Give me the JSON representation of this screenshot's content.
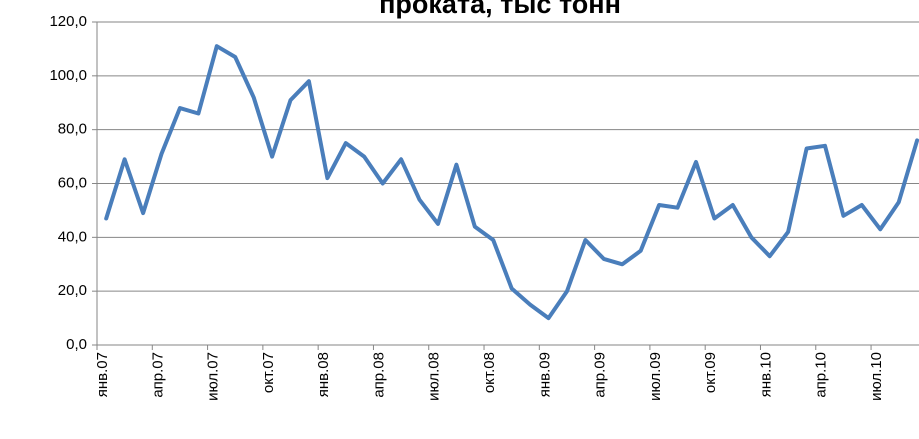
{
  "chart_data": {
    "type": "line",
    "title": "проката, тыс тонн",
    "categories": [
      "янв.07",
      null,
      null,
      "апр.07",
      null,
      null,
      "июл.07",
      null,
      null,
      "окт.07",
      null,
      null,
      "янв.08",
      null,
      null,
      "апр.08",
      null,
      null,
      "июл.08",
      null,
      null,
      "окт.08",
      null,
      null,
      "янв.09",
      null,
      null,
      "апр.09",
      null,
      null,
      "июл.09",
      null,
      null,
      "окт.09",
      null,
      null,
      "янв.10",
      null,
      null,
      "апр.10",
      null,
      null,
      "июл.10",
      null,
      null
    ],
    "series": [
      {
        "color": "#4a7ebb",
        "values": [
          47,
          69,
          49,
          71,
          88,
          86,
          111,
          107,
          92,
          70,
          91,
          98,
          62,
          75,
          70,
          60,
          69,
          54,
          45,
          67,
          44,
          39,
          21,
          15,
          10,
          20,
          39,
          32,
          30,
          35,
          52,
          51,
          68,
          47,
          52,
          40,
          33,
          42,
          73,
          74,
          48,
          52,
          43,
          53,
          76
        ]
      }
    ],
    "ylim": [
      0,
      120
    ],
    "yticks": [
      {
        "value": 0,
        "label": "0,0"
      },
      {
        "value": 20,
        "label": "20,0"
      },
      {
        "value": 40,
        "label": "40,0"
      },
      {
        "value": 60,
        "label": "60,0"
      },
      {
        "value": 80,
        "label": "80,0"
      },
      {
        "value": 100,
        "label": "100,0"
      },
      {
        "value": 120,
        "label": "120,0"
      }
    ],
    "grid": true
  }
}
